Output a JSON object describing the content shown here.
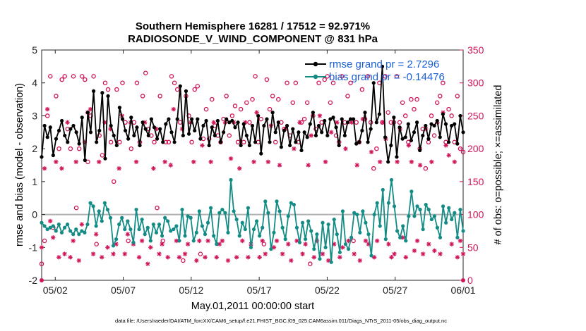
{
  "chart_data": {
    "type": "line",
    "title": [
      "Southern Hemisphere 16281 / 17512 = 92.971%",
      "RADIOSONDE_V_WIND_COMPONENT @ 831 hPa"
    ],
    "xlabel": "May.01,2011 00:00:00 start",
    "ylabel": "rmse and bias (model - observation)",
    "ylabel_right": "# of obs: o=possible; ×=assimilated",
    "footer": "data file: /Users/raeder/DAI/ATM_forcXX/CAM6_setup/f.e21.FHIST_BGC.f09_025.CAM6assim.011/Diags_NTrS_2011-05/obs_diag_output.nc",
    "xlim": [
      0,
      31
    ],
    "ylim": [
      -2,
      5
    ],
    "ylim_right": [
      0,
      350
    ],
    "x_tick_values": [
      1,
      6,
      11,
      16,
      21,
      26,
      31
    ],
    "x_tick_labels": [
      "05/02",
      "05/07",
      "05/12",
      "05/17",
      "05/22",
      "05/27",
      "06/01"
    ],
    "y_ticks": [
      -2,
      -1,
      0,
      1,
      2,
      3,
      4,
      5
    ],
    "y_ticks_right": [
      0,
      50,
      100,
      150,
      200,
      250,
      300,
      350
    ],
    "zero_line": 0,
    "colors": {
      "rmse": "#000000",
      "bias": "#138c86",
      "obs": "#d1145a",
      "legend_text": "#1a5fd6",
      "zero_line": "#b0b0b0"
    },
    "series": [
      {
        "name": "rmse grand pr = 2.7296",
        "axis": "left",
        "values": [
          1.75,
          2.7,
          2.35,
          2.65,
          1.8,
          2.3,
          2.55,
          2.85,
          2.4,
          2.2,
          2.6,
          2.7,
          2.5,
          2.15,
          2.95,
          1.65,
          3.1,
          2.5,
          3.75,
          2.2,
          2.55,
          3.7,
          1.7,
          3.6,
          2.7,
          2.4,
          2.1,
          3.25,
          2.9,
          2.55,
          2.3,
          2.95,
          2.4,
          2.65,
          2.1,
          2.8,
          2.6,
          2.4,
          2.9,
          2.65,
          2.3,
          2.6,
          2.2,
          2.75,
          2.9,
          2.5,
          2.2,
          2.9,
          3.9,
          2.4,
          3.75,
          2.45,
          2.9,
          2.55,
          2.9,
          2.3,
          2.7,
          2.85,
          2.1,
          2.65,
          2.4,
          2.85,
          2.2,
          2.5,
          2.9,
          2.8,
          2.85,
          2.65,
          2.8,
          2.1,
          2.75,
          2.4,
          2.1,
          2.7,
          2.2,
          3.0,
          1.85,
          2.7,
          2.9,
          2.2,
          3.1,
          2.5,
          2.8,
          2.05,
          2.55,
          2.7,
          2.1,
          2.6,
          2.2,
          2.5,
          1.95,
          2.5,
          2.35,
          2.75,
          3.1,
          2.4,
          2.7,
          2.5,
          2.85,
          2.4,
          2.9,
          2.95,
          2.65,
          2.1,
          2.9,
          2.4,
          2.8,
          2.9,
          2.9,
          2.15,
          2.2,
          2.55,
          3.1,
          2.2,
          2.6,
          4.0,
          2.8,
          3.05,
          4.5,
          2.35,
          1.6,
          2.1,
          2.95,
          1.75,
          2.65,
          2.3,
          2.35,
          2.75,
          2.25,
          2.5,
          2.8,
          1.95,
          2.4,
          2.7,
          2.3,
          2.75,
          2.7,
          2.85,
          2.35,
          3.05,
          2.75,
          2.2,
          2.7,
          2.75,
          2.15,
          3.0,
          2.5
        ]
      },
      {
        "name": "bias grand pr = -0.14476",
        "axis": "left",
        "values": [
          -0.25,
          -0.35,
          -0.45,
          -0.4,
          -0.35,
          -0.5,
          -0.3,
          -0.55,
          -0.4,
          -0.3,
          -0.5,
          -0.6,
          -0.45,
          -0.6,
          -0.5,
          -0.55,
          -0.3,
          0.35,
          0.25,
          -0.35,
          0.1,
          -0.2,
          0.35,
          0.15,
          -0.1,
          -0.95,
          -0.75,
          -0.3,
          -0.1,
          -0.45,
          -0.2,
          -0.45,
          -0.85,
          0.15,
          -0.45,
          -0.15,
          -0.6,
          -0.4,
          -0.8,
          -0.3,
          -0.55,
          -0.3,
          -0.65,
          -0.1,
          -0.2,
          -0.5,
          -0.45,
          -0.35,
          -0.8,
          0.15,
          -0.65,
          -0.05,
          -0.1,
          -0.8,
          -0.55,
          0.1,
          -0.35,
          -0.6,
          -0.25,
          0.2,
          -0.65,
          -0.9,
          0.05,
          0.15,
          0.05,
          -0.55,
          1.05,
          0.1,
          -0.15,
          -0.65,
          -0.25,
          -0.45,
          0.2,
          -1.0,
          -0.45,
          -0.2,
          -0.65,
          -0.4,
          0.4,
          0.05,
          -1.05,
          -0.55,
          0.4,
          0.1,
          -0.4,
          -0.75,
          -0.05,
          0.35,
          0.3,
          -0.4,
          -0.85,
          -0.25,
          -0.75,
          -0.2,
          -0.5,
          -1.05,
          -0.6,
          -1.35,
          -0.25,
          -1.0,
          -0.3,
          -1.45,
          -0.15,
          -0.6,
          -1.15,
          0.1,
          -0.9,
          -1.05,
          -0.7,
          0.05,
          0.0,
          -0.55,
          0.1,
          -0.25,
          -0.6,
          -1.25,
          0.0,
          0.35,
          -0.35,
          0.75,
          -0.75,
          0.35,
          1.05,
          0.25,
          -0.5,
          -0.7,
          -0.35,
          -0.8,
          -0.05,
          0.7,
          -0.05,
          0.25,
          0.15,
          -0.45,
          0.3,
          0.15,
          -0.15,
          -0.05,
          -0.4,
          -0.7,
          0.25,
          -0.25,
          0.2,
          -0.15,
          0.05,
          -0.7,
          0.15,
          -0.5
        ]
      },
      {
        "name": "obs possible",
        "axis": "right",
        "marker": "o",
        "values": [
          25,
          60,
          250,
          310,
          80,
          280,
          200,
          305,
          310,
          230,
          200,
          310,
          110,
          200,
          310,
          305,
          180,
          250,
          310,
          55,
          220,
          190,
          300,
          290,
          210,
          150,
          290,
          210,
          300,
          240,
          60,
          200,
          240,
          300,
          210,
          280,
          315,
          230,
          220,
          210,
          110,
          280,
          60,
          210,
          210,
          310,
          300,
          290,
          240,
          30,
          280,
          250,
          210,
          290,
          295,
          40,
          215,
          260,
          215,
          275,
          235,
          220,
          210,
          245,
          280,
          220,
          250,
          265,
          210,
          260,
          210,
          270,
          240,
          275,
          310,
          210,
          245,
          55,
          305,
          260,
          280,
          210,
          275,
          240,
          230,
          300,
          220,
          270,
          300,
          210,
          240,
          245,
          270,
          25,
          250,
          230,
          300,
          240,
          305,
          310,
          270,
          300,
          220,
          210,
          310,
          240,
          280,
          300,
          60,
          240,
          210,
          290,
          245,
          310,
          240,
          170,
          200,
          300,
          240,
          310,
          255,
          240,
          240,
          310,
          240,
          270,
          250,
          210,
          275,
          260,
          275,
          200,
          230,
          170,
          210,
          250,
          220,
          270,
          280,
          300,
          210,
          260,
          250,
          210,
          280,
          200,
          195
        ]
      },
      {
        "name": "obs assimilated",
        "axis": "right",
        "marker": "*",
        "values": [
          50,
          170,
          260,
          90,
          65,
          180,
          35,
          170,
          40,
          240,
          35,
          60,
          180,
          30,
          85,
          210,
          255,
          260,
          40,
          70,
          180,
          35,
          240,
          50,
          230,
          40,
          55,
          170,
          250,
          40,
          70,
          240,
          55,
          180,
          35,
          60,
          240,
          25,
          50,
          170,
          230,
          40,
          55,
          180,
          35,
          175,
          260,
          60,
          35,
          230,
          40,
          55,
          240,
          180,
          30,
          60,
          205,
          35,
          60,
          180,
          240,
          35,
          55,
          60,
          240,
          30,
          185,
          240,
          35,
          170,
          60,
          240,
          35,
          55,
          180,
          255,
          35,
          60,
          40,
          180,
          235,
          50,
          60,
          175,
          40,
          230,
          55,
          30,
          200,
          60,
          240,
          40,
          55,
          175,
          220,
          35,
          60,
          250,
          40,
          180,
          30,
          225,
          55,
          240,
          35,
          50,
          200,
          60,
          240,
          40,
          175,
          30,
          245,
          60,
          55,
          195,
          35,
          60,
          180,
          240,
          215,
          55,
          35,
          40,
          180,
          230,
          65,
          35,
          205,
          180,
          45,
          60,
          175,
          40,
          230,
          55,
          180,
          45,
          240,
          40,
          255,
          205,
          190,
          55,
          180,
          35,
          60,
          40
        ]
      }
    ]
  }
}
